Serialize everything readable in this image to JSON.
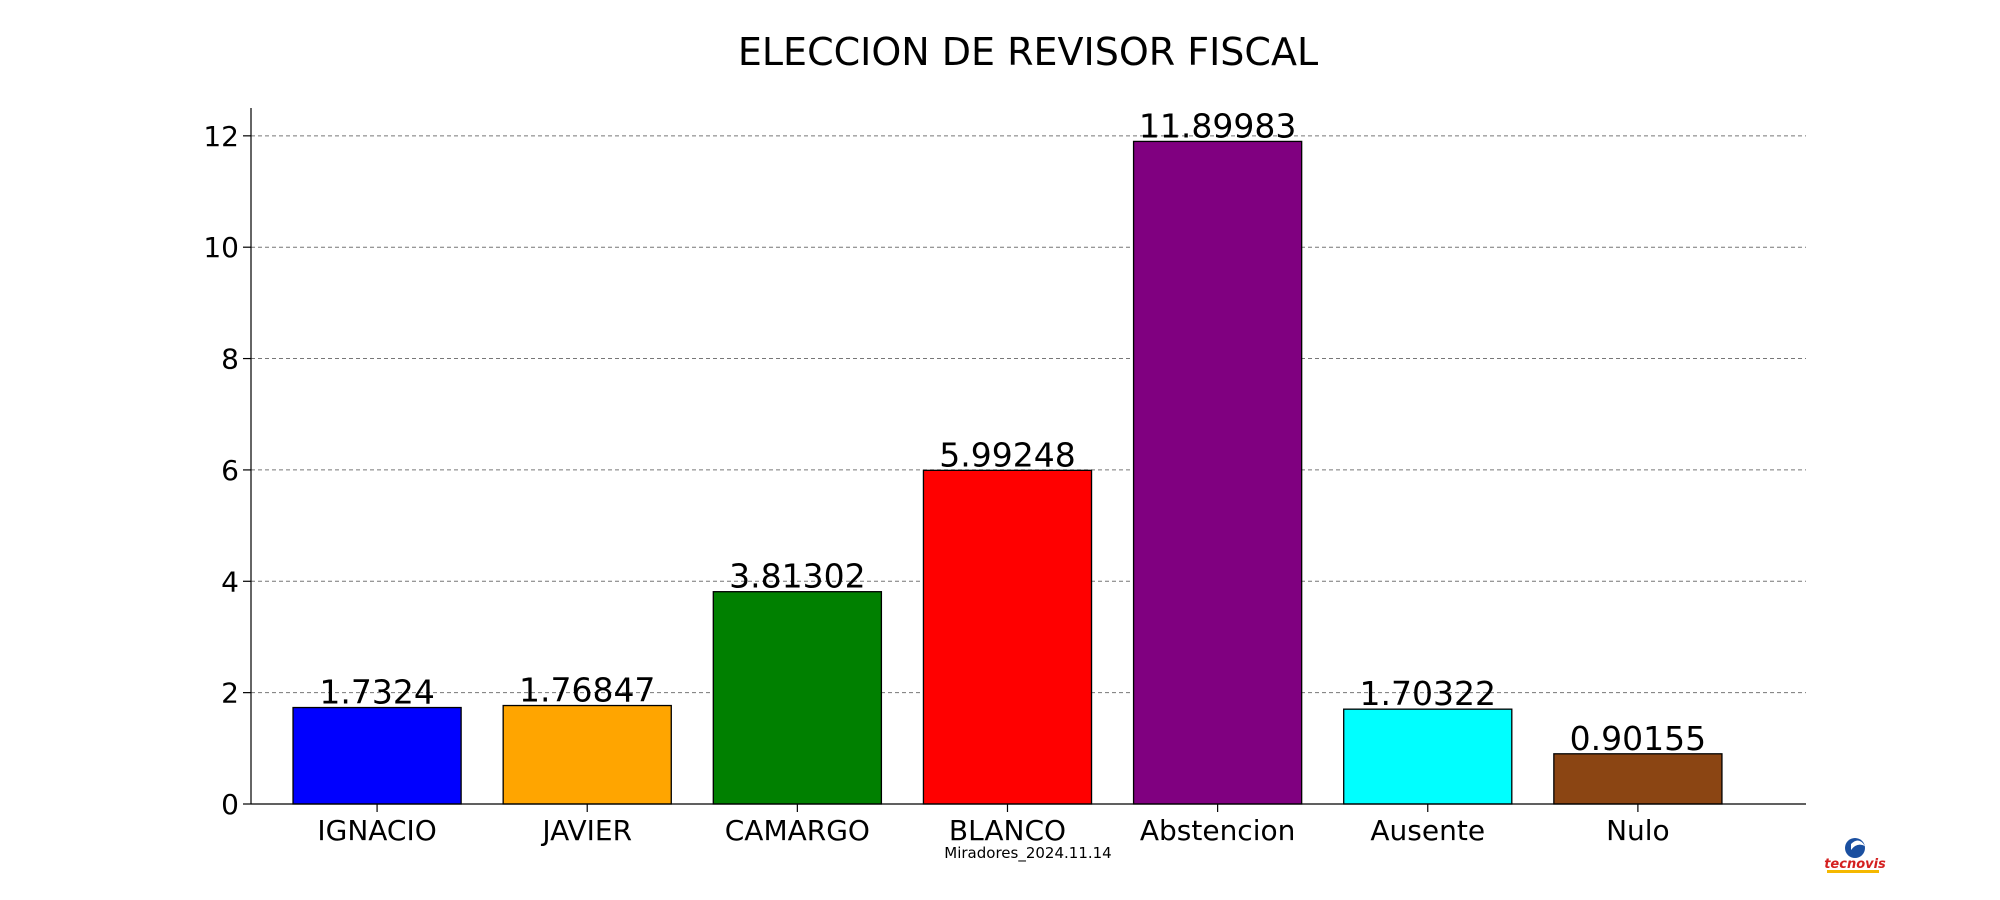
{
  "chart_data": {
    "type": "bar",
    "title": "ELECCION DE REVISOR FISCAL",
    "xlabel": "Miradores_2024.11.14",
    "ylabel": "",
    "categories": [
      "IGNACIO",
      "JAVIER",
      "CAMARGO",
      "BLANCO",
      "Abstencion",
      "Ausente",
      "Nulo"
    ],
    "values": [
      1.7324,
      1.76847,
      3.81302,
      5.99248,
      11.89983,
      1.70322,
      0.90155
    ],
    "value_labels": [
      "1.7324",
      "1.76847",
      "3.81302",
      "5.99248",
      "11.89983",
      "1.70322",
      "0.90155"
    ],
    "colors": [
      "#0000ff",
      "#ffa500",
      "#008000",
      "#ff0000",
      "#800080",
      "#00ffff",
      "#8b4513"
    ],
    "yticks": [
      0,
      2,
      4,
      6,
      8,
      10,
      12
    ],
    "ylim": [
      0,
      12.5
    ],
    "grid": true,
    "legend": "none"
  },
  "logo": {
    "text": "tecnovis",
    "colors": {
      "globe": "#1a4fa0",
      "text": "#d42020",
      "underline": "#f5b800"
    }
  }
}
